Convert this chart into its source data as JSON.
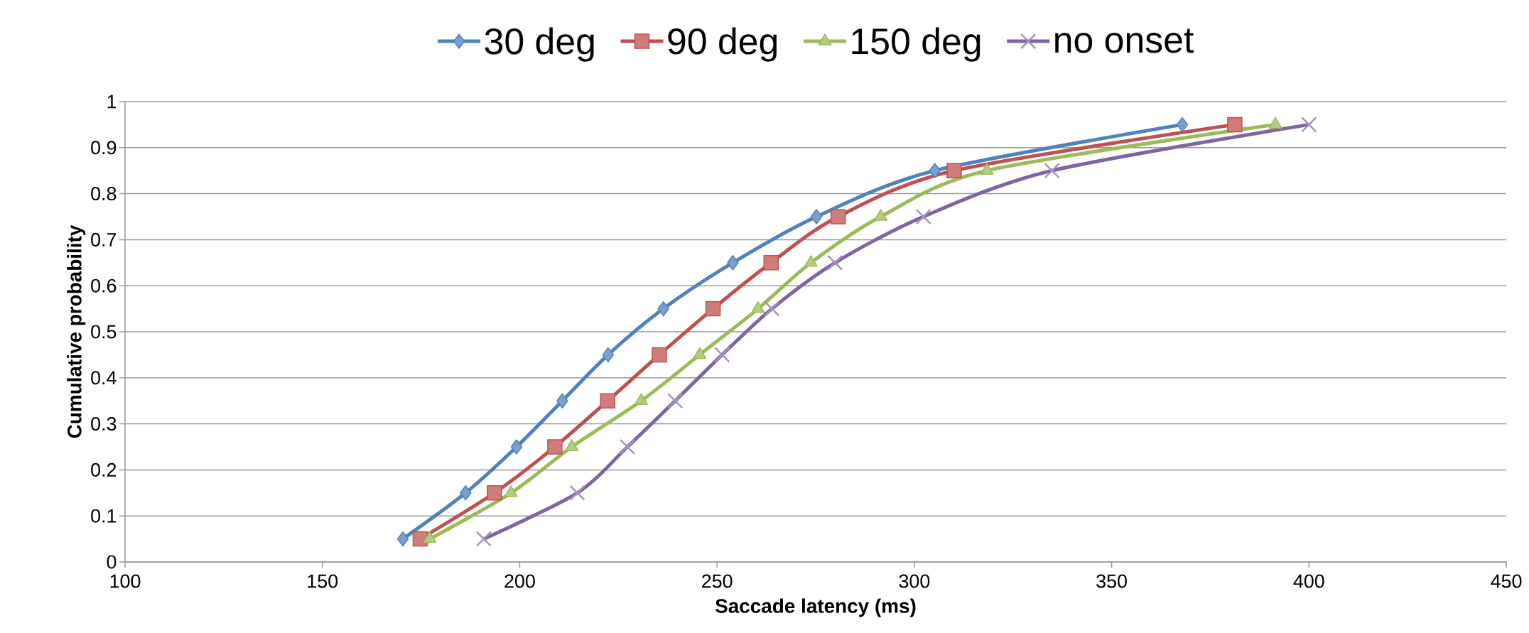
{
  "chart_data": {
    "type": "line",
    "xlabel": "Saccade latency (ms)",
    "ylabel": "Cumulative probability",
    "xlim": [
      100,
      450
    ],
    "xticks": [
      100,
      150,
      200,
      250,
      300,
      350,
      400,
      450
    ],
    "ylim": [
      0,
      1
    ],
    "yticks": [
      0,
      0.1,
      0.2,
      0.3,
      0.4,
      0.5,
      0.6,
      0.7,
      0.8,
      0.9,
      1
    ],
    "grid": "y",
    "legend": "top",
    "line_style": "solid",
    "series": [
      {
        "name": "30 deg",
        "color": "#4f81bd",
        "marker": "diamond",
        "x": [
          170.4,
          186.3,
          199.2,
          210.8,
          222.4,
          236.4,
          254.0,
          275.2,
          305.2,
          367.9
        ],
        "values": [
          0.05,
          0.15,
          0.25,
          0.35,
          0.45,
          0.55,
          0.65,
          0.75,
          0.85,
          0.95
        ]
      },
      {
        "name": "90 deg",
        "color": "#c0504d",
        "marker": "square",
        "x": [
          174.8,
          193.6,
          208.9,
          222.3,
          235.4,
          249.0,
          263.7,
          280.7,
          310.1,
          381.2
        ],
        "values": [
          0.05,
          0.15,
          0.25,
          0.35,
          0.45,
          0.55,
          0.65,
          0.75,
          0.85,
          0.95
        ]
      },
      {
        "name": "150 deg",
        "color": "#9bbb59",
        "marker": "triangle",
        "x": [
          177.2,
          197.8,
          213.2,
          230.8,
          245.6,
          260.4,
          273.8,
          291.5,
          318.4,
          391.5
        ],
        "values": [
          0.05,
          0.15,
          0.25,
          0.35,
          0.45,
          0.55,
          0.65,
          0.75,
          0.85,
          0.95
        ]
      },
      {
        "name": "no onset",
        "color": "#8064a2",
        "marker": "cross",
        "x": [
          190.9,
          214.6,
          227.3,
          239.4,
          251.3,
          263.9,
          279.9,
          302.3,
          334.9,
          400.0
        ],
        "values": [
          0.05,
          0.15,
          0.25,
          0.35,
          0.45,
          0.55,
          0.65,
          0.75,
          0.85,
          0.95
        ]
      }
    ]
  }
}
